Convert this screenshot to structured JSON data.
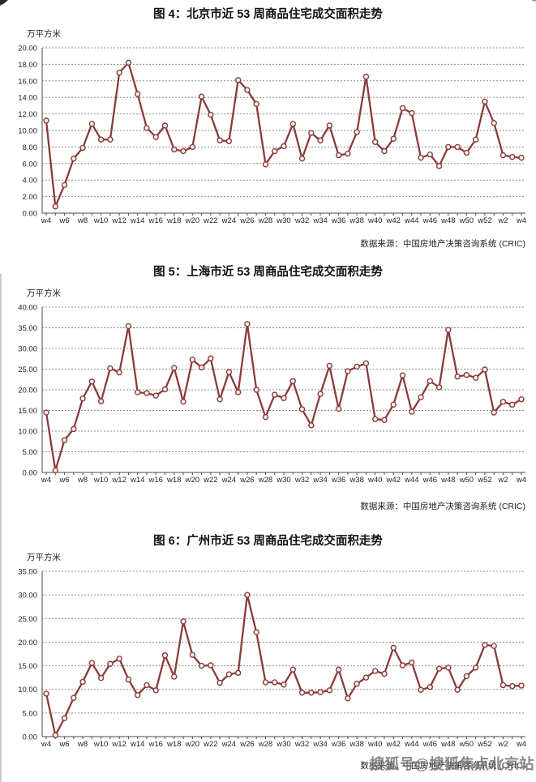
{
  "watermark": "搜狐号@搜狐焦点北京站",
  "colors": {
    "line": "#8a3b3b",
    "marker_fill": "#faf4ec",
    "grid": "#8c8c8c",
    "axis": "#4a4a4a",
    "text": "#1f1f1f",
    "title": "#111111",
    "watermark": "#6e6e6e"
  },
  "chart_data": [
    {
      "type": "line",
      "title": "图 4：北京市近 53 周商品住宅成交面积走势",
      "ylabel_unit": "万平方米",
      "source": "数据来源：中国房地产决策咨询系统 (CRIC)",
      "n_points": 53,
      "tick_every": 2,
      "xtick_labels": [
        "w4",
        "w6",
        "w8",
        "w10",
        "w12",
        "w14",
        "w16",
        "w18",
        "w20",
        "w22",
        "w24",
        "w26",
        "w28",
        "w30",
        "w32",
        "w34",
        "w36",
        "w38",
        "w40",
        "w42",
        "w44",
        "w46",
        "w48",
        "w50",
        "w52",
        "w2",
        "w4"
      ],
      "ylim": [
        0,
        20
      ],
      "ytick_step": 2,
      "ytick_labels": [
        "0.00",
        "2.00",
        "4.00",
        "6.00",
        "8.00",
        "10.00",
        "12.00",
        "14.00",
        "16.00",
        "18.00",
        "20.00"
      ],
      "grid": "dashed-horizontal",
      "marker": "open-circle",
      "values": [
        11.2,
        0.8,
        3.4,
        6.6,
        7.9,
        10.8,
        8.9,
        8.9,
        17.0,
        18.2,
        14.4,
        10.3,
        9.2,
        10.6,
        7.7,
        7.5,
        8.0,
        14.1,
        11.9,
        8.8,
        8.7,
        16.1,
        14.9,
        13.2,
        5.9,
        7.5,
        8.1,
        10.8,
        6.6,
        9.7,
        8.8,
        10.6,
        7.0,
        7.2,
        9.8,
        16.5,
        8.6,
        7.5,
        9.0,
        12.7,
        12.1,
        6.7,
        7.1,
        5.7,
        8.0,
        8.0,
        7.3,
        8.9,
        13.5,
        10.9,
        7.0,
        6.8,
        6.7
      ]
    },
    {
      "type": "line",
      "title": "图 5：上海市近 53 周商品住宅成交面积走势",
      "ylabel_unit": "万平方米",
      "source": "数据来源：中国房地产决策咨询系统 (CRIC)",
      "n_points": 53,
      "tick_every": 2,
      "xtick_labels": [
        "w4",
        "w6",
        "w8",
        "w10",
        "w12",
        "w14",
        "w16",
        "w18",
        "w20",
        "w22",
        "w24",
        "w26",
        "w28",
        "w30",
        "w32",
        "w34",
        "w36",
        "w38",
        "w40",
        "w42",
        "w44",
        "w46",
        "w48",
        "w50",
        "w52",
        "w2",
        "w4"
      ],
      "ylim": [
        0,
        40
      ],
      "ytick_step": 5,
      "ytick_labels": [
        "0.00",
        "5.00",
        "10.00",
        "15.00",
        "20.00",
        "25.00",
        "30.00",
        "35.00",
        "40.00"
      ],
      "grid": "dashed-horizontal",
      "marker": "open-circle",
      "values": [
        14.5,
        0.5,
        7.8,
        10.5,
        17.9,
        22.0,
        17.2,
        25.2,
        24.2,
        35.4,
        19.4,
        19.2,
        18.6,
        20.1,
        25.3,
        17.1,
        27.3,
        25.4,
        27.6,
        17.7,
        24.3,
        19.4,
        35.9,
        20.0,
        13.4,
        18.8,
        18.0,
        22.1,
        15.3,
        11.4,
        19.0,
        25.8,
        15.4,
        24.5,
        25.6,
        26.4,
        12.9,
        12.7,
        16.4,
        23.5,
        14.7,
        18.2,
        22.1,
        20.6,
        34.5,
        23.2,
        23.6,
        22.9,
        24.9,
        14.5,
        17.1,
        16.4,
        17.7
      ]
    },
    {
      "type": "line",
      "title": "图 6：广州市近 53 周商品住宅成交面积走势",
      "ylabel_unit": "万平方米",
      "source": "数据来源：中国房地产决策咨询系统 (CRIC)",
      "n_points": 53,
      "tick_every": 2,
      "xtick_labels": [
        "w4",
        "w6",
        "w8",
        "w10",
        "w12",
        "w14",
        "w16",
        "w18",
        "w20",
        "w22",
        "w24",
        "w26",
        "w28",
        "w30",
        "w32",
        "w34",
        "w36",
        "w38",
        "w40",
        "w42",
        "w44",
        "w46",
        "w48",
        "w50",
        "w52",
        "w2",
        "w4"
      ],
      "ylim": [
        0,
        35
      ],
      "ytick_step": 5,
      "ytick_labels": [
        "0.00",
        "5.00",
        "10.00",
        "15.00",
        "20.00",
        "25.00",
        "30.00",
        "35.00"
      ],
      "grid": "dashed-horizontal",
      "marker": "open-circle",
      "values": [
        9.1,
        0.3,
        3.9,
        8.2,
        11.6,
        15.6,
        12.4,
        15.4,
        16.5,
        12.1,
        8.8,
        10.9,
        9.8,
        17.2,
        12.7,
        24.4,
        17.3,
        15.0,
        15.1,
        11.4,
        13.2,
        13.5,
        30.0,
        22.1,
        11.5,
        11.5,
        11.0,
        14.2,
        9.3,
        9.3,
        9.4,
        9.8,
        14.2,
        8.1,
        11.2,
        12.5,
        13.9,
        13.3,
        18.8,
        15.1,
        15.7,
        9.9,
        10.5,
        14.4,
        14.6,
        9.9,
        12.8,
        14.6,
        19.4,
        19.2,
        10.9,
        10.7,
        10.8
      ]
    }
  ]
}
